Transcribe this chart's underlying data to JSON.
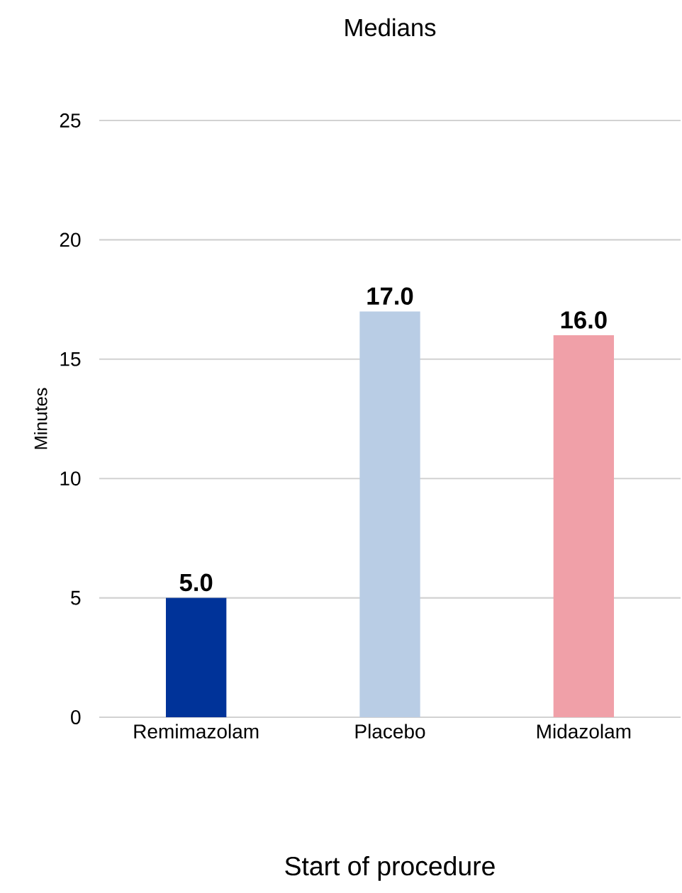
{
  "chart_data": {
    "type": "bar",
    "title": "Medians",
    "xlabel": "Start of procedure",
    "ylabel": "Minutes",
    "categories": [
      "Remimazolam",
      "Placebo",
      "Midazolam"
    ],
    "values": [
      5.0,
      17.0,
      16.0
    ],
    "colors": [
      "#003399",
      "#b9cde5",
      "#f0a0a8"
    ],
    "value_labels": [
      "5.0",
      "17.0",
      "16.0"
    ],
    "ylim": [
      0,
      25
    ],
    "yticks": [
      0,
      5,
      10,
      15,
      20,
      25
    ],
    "grid": "y"
  }
}
